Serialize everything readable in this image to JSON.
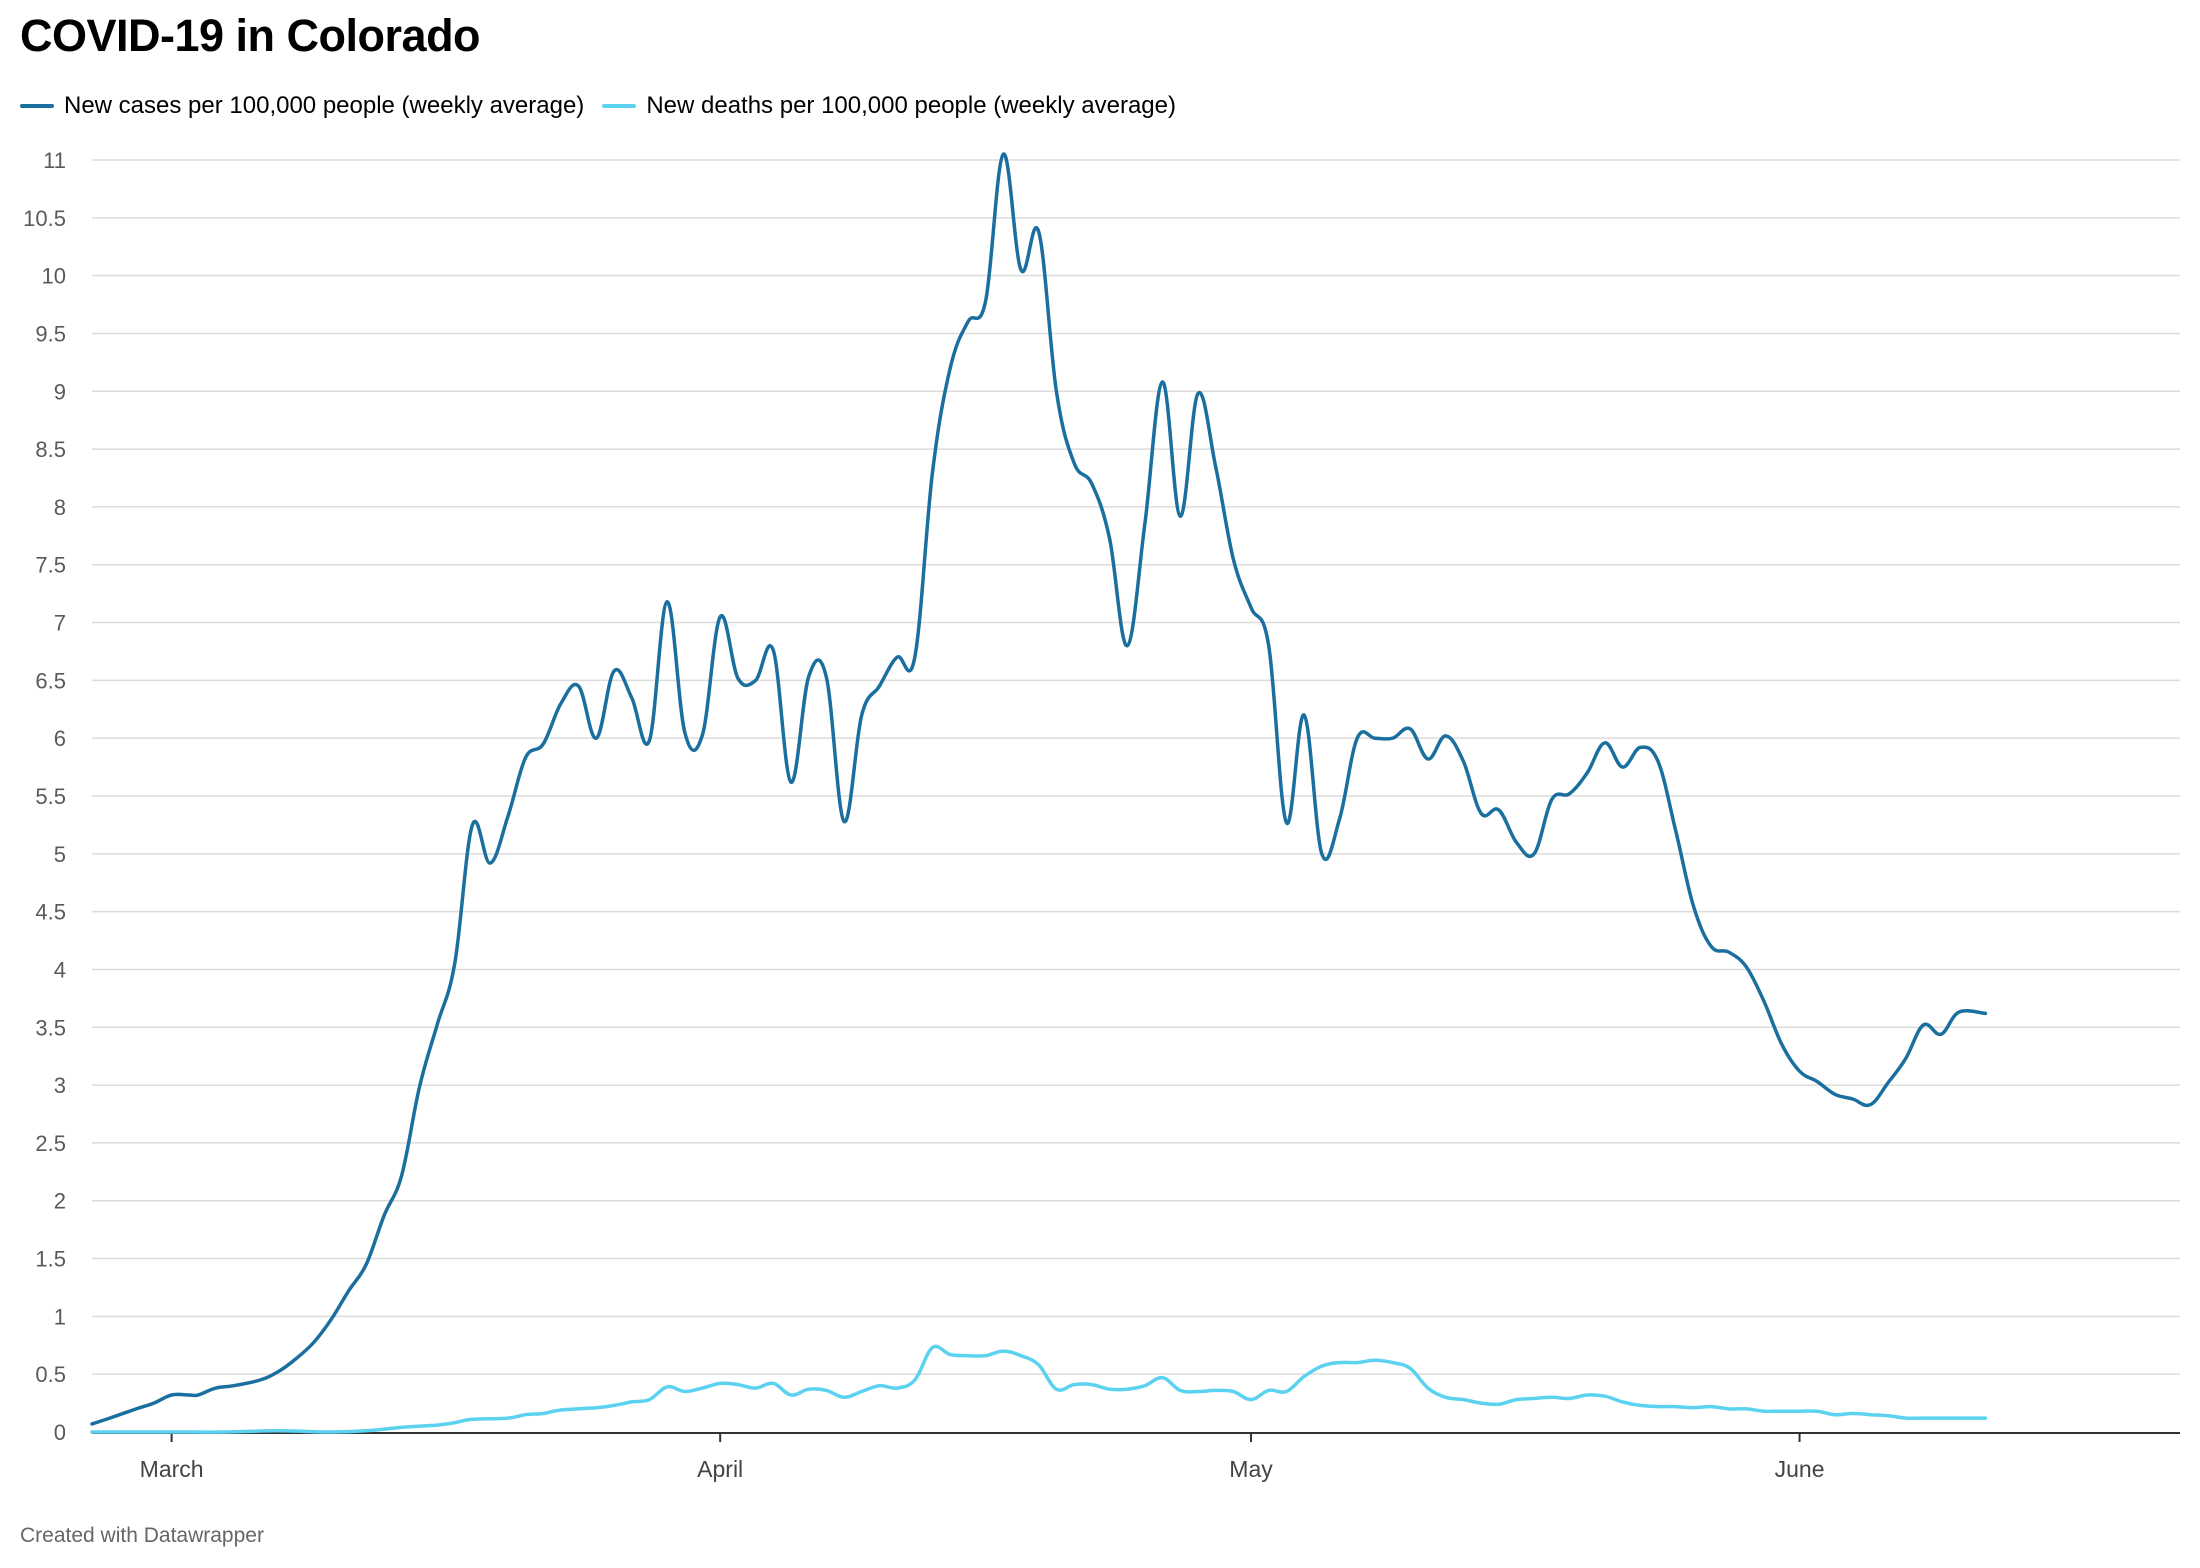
{
  "chart_data": {
    "type": "line",
    "title": "COVID-19 in Colorado",
    "xlabel": "",
    "ylabel": "",
    "ylim": [
      0,
      11
    ],
    "y_ticks": [
      "0",
      "0.5",
      "1",
      "1.5",
      "2",
      "2.5",
      "3",
      "3.5",
      "4",
      "4.5",
      "5",
      "5.5",
      "6",
      "6.5",
      "7",
      "7.5",
      "8",
      "8.5",
      "9",
      "9.5",
      "10",
      "10.5",
      "11"
    ],
    "x_tick_labels": [
      {
        "label": "March",
        "day": 0
      },
      {
        "label": "April",
        "day": 31
      },
      {
        "label": "May",
        "day": 61
      },
      {
        "label": "June",
        "day": 92
      }
    ],
    "x_domain": [
      -4.5,
      113.5
    ],
    "grid": true,
    "legend_position": "top-left",
    "series": [
      {
        "name": "New cases per 100,000 people (weekly average)",
        "color": "#1a6f9f",
        "points": [
          [
            -4.5,
            0.07
          ],
          [
            -3.5,
            0.12
          ],
          [
            -2,
            0.2
          ],
          [
            -1,
            0.25
          ],
          [
            0,
            0.32
          ],
          [
            1,
            0.32
          ],
          [
            1.5,
            0.32
          ],
          [
            2.5,
            0.38
          ],
          [
            3.5,
            0.4
          ],
          [
            5,
            0.45
          ],
          [
            6,
            0.52
          ],
          [
            7,
            0.63
          ],
          [
            8,
            0.77
          ],
          [
            9,
            0.97
          ],
          [
            10,
            1.22
          ],
          [
            11,
            1.45
          ],
          [
            12,
            1.87
          ],
          [
            13,
            2.22
          ],
          [
            14,
            2.98
          ],
          [
            15,
            3.52
          ],
          [
            16,
            4.05
          ],
          [
            17,
            5.25
          ],
          [
            18,
            4.92
          ],
          [
            19,
            5.32
          ],
          [
            20,
            5.83
          ],
          [
            21,
            5.95
          ],
          [
            22,
            6.3
          ],
          [
            23,
            6.45
          ],
          [
            24,
            6.0
          ],
          [
            25,
            6.58
          ],
          [
            26,
            6.35
          ],
          [
            27,
            5.98
          ],
          [
            28,
            7.18
          ],
          [
            29,
            6.05
          ],
          [
            30,
            6.03
          ],
          [
            31,
            7.05
          ],
          [
            32,
            6.52
          ],
          [
            33,
            6.5
          ],
          [
            34,
            6.76
          ],
          [
            35,
            5.62
          ],
          [
            36,
            6.53
          ],
          [
            37,
            6.53
          ],
          [
            38,
            5.28
          ],
          [
            39,
            6.2
          ],
          [
            40,
            6.45
          ],
          [
            41,
            6.7
          ],
          [
            42,
            6.7
          ],
          [
            43,
            8.3
          ],
          [
            44,
            9.2
          ],
          [
            45,
            9.6
          ],
          [
            46,
            9.78
          ],
          [
            47,
            11.05
          ],
          [
            48,
            10.05
          ],
          [
            49,
            10.38
          ],
          [
            50,
            9.0
          ],
          [
            51,
            8.38
          ],
          [
            52,
            8.2
          ],
          [
            53,
            7.73
          ],
          [
            54,
            6.8
          ],
          [
            55,
            7.85
          ],
          [
            56,
            9.08
          ],
          [
            57,
            7.92
          ],
          [
            58,
            8.98
          ],
          [
            59,
            8.35
          ],
          [
            60,
            7.55
          ],
          [
            61,
            7.13
          ],
          [
            62,
            6.8
          ],
          [
            63,
            5.27
          ],
          [
            64,
            6.2
          ],
          [
            65,
            5.0
          ],
          [
            66,
            5.3
          ],
          [
            67,
            6.0
          ],
          [
            68,
            6.0
          ],
          [
            69,
            6.0
          ],
          [
            70,
            6.08
          ],
          [
            71,
            5.82
          ],
          [
            72,
            6.02
          ],
          [
            73,
            5.8
          ],
          [
            74,
            5.35
          ],
          [
            75,
            5.38
          ],
          [
            76,
            5.1
          ],
          [
            77,
            5.0
          ],
          [
            78,
            5.47
          ],
          [
            79,
            5.52
          ],
          [
            80,
            5.7
          ],
          [
            81,
            5.96
          ],
          [
            82,
            5.75
          ],
          [
            83,
            5.92
          ],
          [
            84,
            5.8
          ],
          [
            85,
            5.2
          ],
          [
            86,
            4.55
          ],
          [
            87,
            4.2
          ],
          [
            88,
            4.15
          ],
          [
            89,
            4.02
          ],
          [
            90,
            3.72
          ],
          [
            91,
            3.35
          ],
          [
            92,
            3.12
          ],
          [
            93,
            3.03
          ],
          [
            94,
            2.92
          ],
          [
            95,
            2.88
          ],
          [
            96,
            2.83
          ],
          [
            97,
            3.02
          ],
          [
            98,
            3.23
          ],
          [
            99,
            3.52
          ],
          [
            100,
            3.44
          ],
          [
            101,
            3.63
          ],
          [
            102.5,
            3.62
          ]
        ]
      },
      {
        "name": "New deaths per 100,000 people (weekly average)",
        "color": "#5bd2f0",
        "points": [
          [
            -4.5,
            0.0
          ],
          [
            0,
            0.0
          ],
          [
            3,
            0.0
          ],
          [
            6,
            0.01
          ],
          [
            9,
            0.0
          ],
          [
            11,
            0.01
          ],
          [
            13,
            0.04
          ],
          [
            15,
            0.06
          ],
          [
            16,
            0.08
          ],
          [
            17,
            0.11
          ],
          [
            19,
            0.12
          ],
          [
            20,
            0.15
          ],
          [
            21,
            0.16
          ],
          [
            22,
            0.19
          ],
          [
            24,
            0.21
          ],
          [
            25,
            0.23
          ],
          [
            26,
            0.26
          ],
          [
            27,
            0.28
          ],
          [
            28,
            0.39
          ],
          [
            29,
            0.35
          ],
          [
            30,
            0.38
          ],
          [
            31,
            0.42
          ],
          [
            32,
            0.41
          ],
          [
            33,
            0.38
          ],
          [
            34,
            0.42
          ],
          [
            35,
            0.32
          ],
          [
            36,
            0.37
          ],
          [
            37,
            0.36
          ],
          [
            38,
            0.3
          ],
          [
            39,
            0.35
          ],
          [
            40,
            0.4
          ],
          [
            41,
            0.38
          ],
          [
            42,
            0.45
          ],
          [
            43,
            0.73
          ],
          [
            44,
            0.67
          ],
          [
            45,
            0.66
          ],
          [
            46,
            0.66
          ],
          [
            47,
            0.7
          ],
          [
            48,
            0.66
          ],
          [
            49,
            0.58
          ],
          [
            50,
            0.37
          ],
          [
            51,
            0.41
          ],
          [
            52,
            0.41
          ],
          [
            53,
            0.37
          ],
          [
            54,
            0.37
          ],
          [
            55,
            0.4
          ],
          [
            56,
            0.47
          ],
          [
            57,
            0.36
          ],
          [
            58,
            0.35
          ],
          [
            59,
            0.36
          ],
          [
            60,
            0.35
          ],
          [
            61,
            0.28
          ],
          [
            62,
            0.36
          ],
          [
            63,
            0.35
          ],
          [
            64,
            0.48
          ],
          [
            65,
            0.57
          ],
          [
            66,
            0.6
          ],
          [
            67,
            0.6
          ],
          [
            68,
            0.62
          ],
          [
            69,
            0.6
          ],
          [
            70,
            0.55
          ],
          [
            71,
            0.38
          ],
          [
            72,
            0.3
          ],
          [
            73,
            0.28
          ],
          [
            74,
            0.25
          ],
          [
            75,
            0.24
          ],
          [
            76,
            0.28
          ],
          [
            77,
            0.29
          ],
          [
            78,
            0.3
          ],
          [
            79,
            0.29
          ],
          [
            80,
            0.32
          ],
          [
            81,
            0.31
          ],
          [
            82,
            0.26
          ],
          [
            83,
            0.23
          ],
          [
            84,
            0.22
          ],
          [
            85,
            0.22
          ],
          [
            86,
            0.21
          ],
          [
            87,
            0.22
          ],
          [
            88,
            0.2
          ],
          [
            89,
            0.2
          ],
          [
            90,
            0.18
          ],
          [
            91,
            0.18
          ],
          [
            92,
            0.18
          ],
          [
            93,
            0.18
          ],
          [
            94,
            0.15
          ],
          [
            95,
            0.16
          ],
          [
            96,
            0.15
          ],
          [
            97,
            0.14
          ],
          [
            98,
            0.12
          ],
          [
            99,
            0.12
          ],
          [
            100,
            0.12
          ],
          [
            101,
            0.12
          ],
          [
            102.5,
            0.12
          ]
        ]
      }
    ]
  },
  "footer": "Created with Datawrapper"
}
